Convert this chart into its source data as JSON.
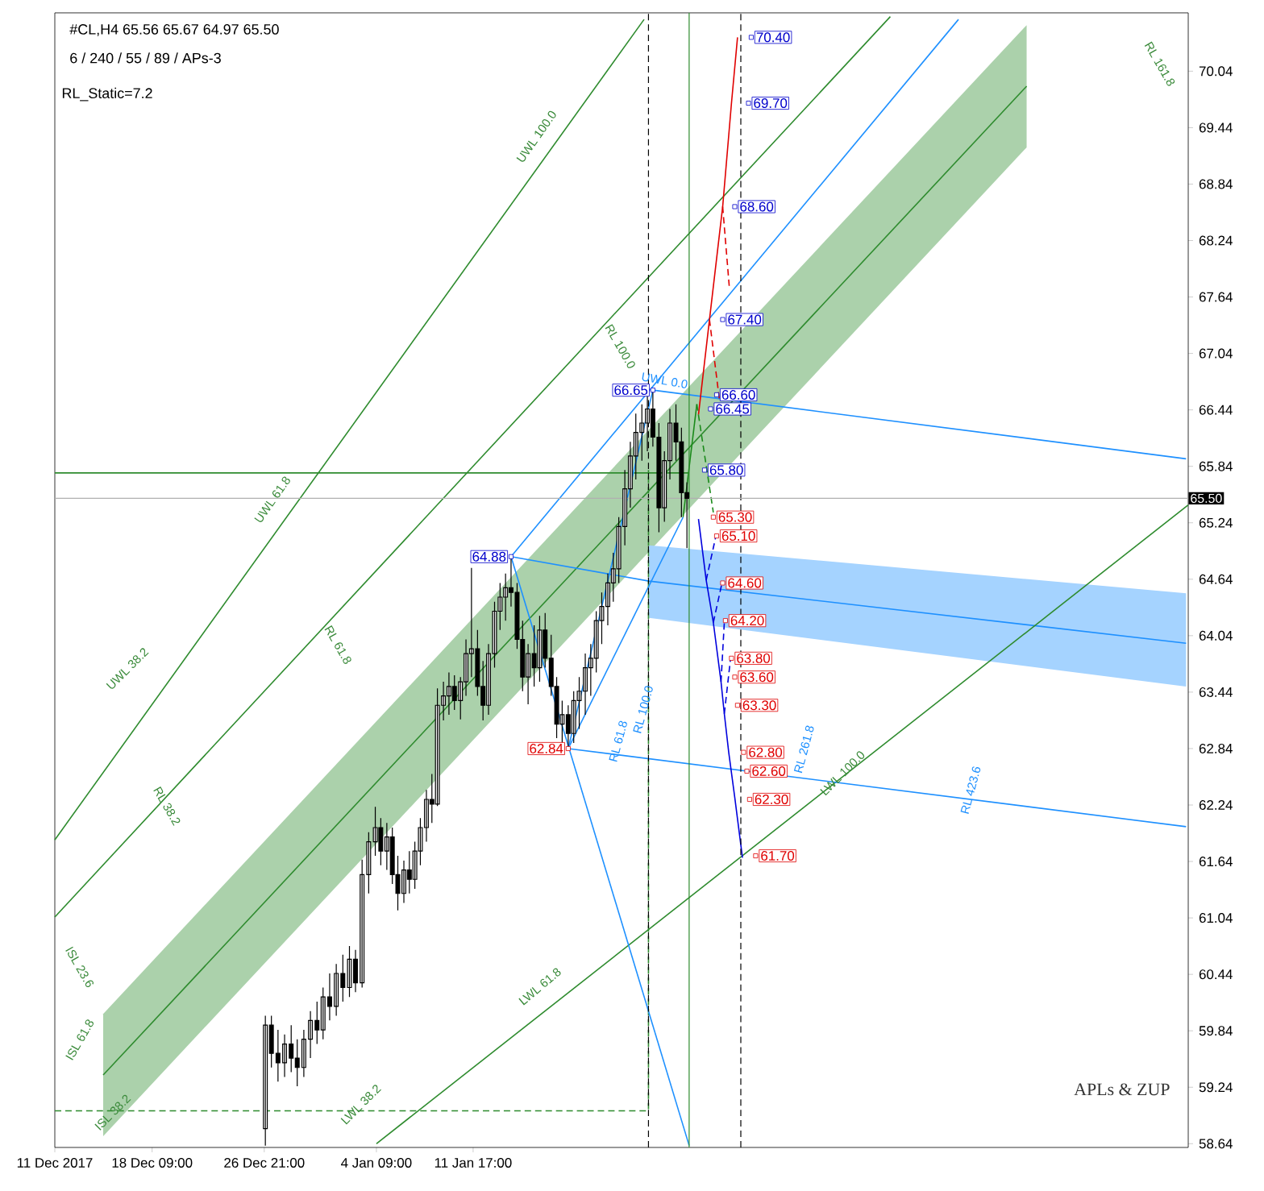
{
  "chart_data": {
    "type": "candlestick",
    "title": "#CL,H4 65.56 65.67 64.97 65.50",
    "subtitle": "6 / 240 / 55 / 89 / APs-3",
    "color": "#000000",
    "x": [
      "2017-12-26T23:00",
      "2017-12-27T10:00",
      "2017-12-27T22:00",
      "2017-12-28T10:00",
      "2017-12-28T22:00",
      "2017-12-29T09:00",
      "2017-12-29T21:00",
      "2017-12-30T09:00",
      "2017-12-30T21:00",
      "2017-12-31T08:00",
      "2017-12-31T20:00",
      "2018-01-01T08:00",
      "2018-01-01T20:00",
      "2018-01-02T08:00",
      "2018-01-02T19:00",
      "2018-01-03T07:00",
      "2018-01-03T19:00",
      "2018-01-04T07:00",
      "2018-01-04T17:00",
      "2018-01-05T04:00",
      "2018-01-05T14:00",
      "2018-01-06T00:00",
      "2018-01-06T11:00",
      "2018-01-06T21:00",
      "2018-01-07T07:00",
      "2018-01-07T17:00",
      "2018-01-08T04:00",
      "2018-01-08T14:00",
      "2018-01-09T00:00",
      "2018-01-09T11:00",
      "2018-01-09T21:00",
      "2018-01-10T07:00",
      "2018-01-10T18:00",
      "2018-01-11T04:00",
      "2018-01-11T14:00",
      "2018-01-12T01:00",
      "2018-01-12T11:00",
      "2018-01-12T21:00",
      "2018-01-13T08:00",
      "2018-01-13T18:00",
      "2018-01-14T04:00",
      "2018-01-14T14:00",
      "2018-01-15T01:00",
      "2018-01-15T11:00",
      "2018-01-15T21:00",
      "2018-01-16T08:00",
      "2018-01-16T18:00",
      "2018-01-17T04:00",
      "2018-01-17T15:00",
      "2018-01-18T01:00",
      "2018-01-18T11:00",
      "2018-01-18T22:00",
      "2018-01-19T08:00",
      "2018-01-19T18:00",
      "2018-01-20T05:00",
      "2018-01-20T15:00",
      "2018-01-21T01:00",
      "2018-01-21T11:00",
      "2018-01-21T22:00",
      "2018-01-22T08:00",
      "2018-01-22T18:00",
      "2018-01-23T05:00",
      "2018-01-23T15:00",
      "2018-01-24T01:00",
      "2018-01-24T12:00",
      "2018-01-24T22:00",
      "2018-01-25T08:00",
      "2018-01-25T19:00",
      "2018-01-26T05:00",
      "2018-01-26T15:00",
      "2018-01-27T02:00",
      "2018-01-27T12:00",
      "2018-01-27T22:00"
    ],
    "ohlc": [
      [
        58.8,
        60.0,
        58.62,
        59.9
      ],
      [
        59.9,
        60.0,
        59.45,
        59.6
      ],
      [
        59.6,
        59.85,
        59.3,
        59.5
      ],
      [
        59.5,
        59.8,
        59.35,
        59.7
      ],
      [
        59.7,
        59.9,
        59.4,
        59.55
      ],
      [
        59.55,
        59.75,
        59.25,
        59.45
      ],
      [
        59.45,
        59.85,
        59.35,
        59.75
      ],
      [
        59.75,
        60.05,
        59.55,
        59.95
      ],
      [
        59.95,
        60.15,
        59.7,
        59.85
      ],
      [
        59.85,
        60.3,
        59.75,
        60.2
      ],
      [
        60.2,
        60.45,
        59.95,
        60.1
      ],
      [
        60.1,
        60.55,
        60.0,
        60.45
      ],
      [
        60.45,
        60.65,
        60.15,
        60.3
      ],
      [
        60.3,
        60.74,
        60.2,
        60.6
      ],
      [
        60.6,
        60.7,
        60.25,
        60.35
      ],
      [
        60.35,
        61.66,
        60.3,
        61.5
      ],
      [
        61.5,
        61.95,
        61.3,
        61.85
      ],
      [
        61.85,
        62.22,
        61.7,
        62.0
      ],
      [
        62.0,
        62.1,
        61.6,
        61.75
      ],
      [
        61.75,
        62.05,
        61.55,
        61.9
      ],
      [
        61.9,
        62.0,
        61.4,
        61.5
      ],
      [
        61.5,
        61.7,
        61.12,
        61.3
      ],
      [
        61.3,
        61.65,
        61.2,
        61.55
      ],
      [
        61.55,
        61.75,
        61.3,
        61.45
      ],
      [
        61.45,
        61.85,
        61.35,
        61.75
      ],
      [
        61.75,
        62.1,
        61.6,
        62.0
      ],
      [
        62.0,
        62.4,
        61.85,
        62.3
      ],
      [
        62.3,
        62.57,
        62.05,
        62.25
      ],
      [
        62.25,
        63.48,
        62.23,
        63.3
      ],
      [
        63.3,
        63.55,
        63.14,
        63.4
      ],
      [
        63.4,
        63.65,
        63.2,
        63.5
      ],
      [
        63.5,
        63.62,
        63.25,
        63.35
      ],
      [
        63.35,
        63.6,
        63.15,
        63.55
      ],
      [
        63.55,
        64.0,
        63.4,
        63.85
      ],
      [
        63.85,
        64.76,
        63.6,
        63.9
      ],
      [
        63.9,
        64.1,
        63.4,
        63.5
      ],
      [
        63.5,
        63.77,
        63.14,
        63.3
      ],
      [
        63.3,
        63.95,
        63.2,
        63.85
      ],
      [
        63.85,
        64.4,
        63.7,
        64.3
      ],
      [
        64.3,
        64.6,
        64.1,
        64.45
      ],
      [
        64.45,
        64.7,
        64.2,
        64.55
      ],
      [
        64.55,
        64.88,
        64.35,
        64.5
      ],
      [
        64.5,
        64.6,
        63.9,
        64.0
      ],
      [
        64.0,
        64.2,
        63.45,
        63.6
      ],
      [
        63.6,
        63.95,
        63.31,
        63.85
      ],
      [
        63.85,
        64.15,
        63.5,
        63.7
      ],
      [
        63.7,
        64.25,
        63.55,
        64.1
      ],
      [
        64.1,
        64.28,
        63.7,
        63.8
      ],
      [
        63.8,
        64.05,
        63.4,
        63.5
      ],
      [
        63.5,
        63.6,
        62.95,
        63.1
      ],
      [
        63.1,
        63.35,
        62.9,
        63.2
      ],
      [
        63.2,
        63.3,
        62.84,
        63.0
      ],
      [
        63.0,
        63.45,
        62.9,
        63.35
      ],
      [
        63.35,
        63.6,
        63.05,
        63.45
      ],
      [
        63.45,
        63.85,
        63.2,
        63.7
      ],
      [
        63.7,
        63.95,
        63.4,
        63.8
      ],
      [
        63.8,
        64.3,
        63.65,
        64.2
      ],
      [
        64.2,
        64.5,
        63.95,
        64.35
      ],
      [
        64.35,
        64.7,
        64.15,
        64.6
      ],
      [
        64.6,
        64.92,
        64.4,
        64.75
      ],
      [
        64.75,
        65.3,
        64.6,
        65.2
      ],
      [
        65.2,
        65.8,
        65.0,
        65.6
      ],
      [
        65.6,
        66.1,
        65.4,
        65.95
      ],
      [
        65.95,
        66.4,
        65.7,
        66.2
      ],
      [
        66.2,
        66.5,
        65.9,
        66.3
      ],
      [
        66.3,
        66.6,
        66.0,
        66.45
      ],
      [
        66.45,
        66.65,
        66.05,
        66.15
      ],
      [
        66.15,
        66.3,
        65.14,
        65.4
      ],
      [
        65.4,
        66.0,
        65.25,
        65.9
      ],
      [
        65.9,
        66.45,
        65.7,
        66.3
      ],
      [
        66.3,
        66.5,
        65.9,
        66.1
      ],
      [
        66.1,
        66.25,
        65.3,
        65.56
      ],
      [
        65.56,
        65.67,
        64.97,
        65.5
      ]
    ],
    "series": [
      {
        "type": "line",
        "color": "#2e8b2e",
        "x": [
          "2017-12-14T16:00",
          "2018-02-22T16:00"
        ],
        "values": [
          59.37,
          69.88
        ],
        "lower": [
          58.72,
          69.23
        ],
        "upper": [
          60.02,
          70.53
        ]
      },
      {
        "type": "line",
        "color": "#1e90ff",
        "x": [
          "2018-01-14T14:00",
          "2018-01-25T01:00",
          "2018-03-06T18:00"
        ],
        "values": [
          64.88,
          64.62,
          63.96
        ],
        "lower": [
          null,
          64.23,
          63.5
        ],
        "upper": [
          null,
          65.0,
          64.49
        ]
      },
      {
        "type": "line",
        "color": "#2e8b2e",
        "x": [
          "2017-12-11T00:00",
          "2018-01-24T16:00"
        ],
        "values": [
          61.87,
          70.59
        ]
      },
      {
        "type": "line",
        "color": "#2e8b2e",
        "x": [
          "2017-12-11T00:00",
          "2018-02-12T08:00"
        ],
        "values": [
          61.05,
          70.62
        ]
      },
      {
        "type": "line",
        "color": "#2e8b2e",
        "x": [
          "2018-01-04T09:00",
          "2018-03-06T22:00"
        ],
        "values": [
          58.64,
          65.43
        ]
      },
      {
        "type": "line",
        "color": "#2e8b2e",
        "x": [
          "2017-12-11T00:00",
          "2018-01-28T02:00"
        ],
        "values": [
          65.77,
          65.77
        ]
      },
      {
        "type": "line",
        "color": "#2e8b2e",
        "line_style": "dashed",
        "x": [
          "2017-12-11T00:00",
          "2018-01-25T00:00",
          "2018-01-25T00:00"
        ],
        "values": [
          58.99,
          58.99,
          65.8
        ]
      },
      {
        "type": "line",
        "color": "#1e90ff",
        "x": [
          "2018-01-25T08:00",
          "2018-03-06T18:00"
        ],
        "values": [
          66.65,
          65.92
        ]
      },
      {
        "type": "line",
        "color": "#1e90ff",
        "x": [
          "2018-01-18T22:00",
          "2018-03-06T18:00"
        ],
        "values": [
          62.84,
          62.01
        ]
      },
      {
        "type": "line",
        "color": "#1e90ff",
        "x": [
          "2018-01-14T14:00",
          "2018-01-28T02:00"
        ],
        "values": [
          64.88,
          58.62
        ]
      },
      {
        "type": "line",
        "color": "#1e90ff",
        "x": [
          "2018-01-14T14:00",
          "2018-02-17T12:00"
        ],
        "values": [
          64.88,
          70.59
        ]
      },
      {
        "type": "line",
        "color": "#1e90ff",
        "x": [
          "2018-01-18T22:00",
          "2018-01-25T08:00"
        ],
        "values": [
          62.84,
          66.65
        ]
      },
      {
        "type": "line",
        "color": "#1e90ff",
        "x": [
          "2018-01-18T22:00",
          "2018-01-27T15:00"
        ],
        "values": [
          62.84,
          65.3
        ]
      },
      {
        "type": "line",
        "color": "#e00000",
        "x": [
          "2018-01-28T19:00",
          "2018-01-29T15:00",
          "2018-01-30T15:00",
          "2018-01-31T07:00",
          "2018-01-31T18:00"
        ],
        "values": [
          66.39,
          67.4,
          68.6,
          69.7,
          70.4
        ]
      },
      {
        "type": "line",
        "color": "#e00000",
        "line_style": "dashed",
        "x": [
          "2018-01-29T15:00",
          "2018-01-30T09:00"
        ],
        "values": [
          67.4,
          66.55
        ]
      },
      {
        "type": "line",
        "color": "#e00000",
        "line_style": "dashed",
        "x": [
          "2018-01-30T15:00",
          "2018-01-31T03:00"
        ],
        "values": [
          68.6,
          67.75
        ]
      },
      {
        "type": "line",
        "color": "#1a8a1a",
        "x": [
          "2018-01-27T15:00",
          "2018-01-28T16:00"
        ],
        "values": [
          65.3,
          66.5
        ]
      },
      {
        "type": "line",
        "color": "#1a8a1a",
        "line_style": "dashed",
        "x": [
          "2018-01-28T16:00",
          "2018-01-29T22:00"
        ],
        "values": [
          66.5,
          65.35
        ]
      },
      {
        "type": "line",
        "color": "#0000dd",
        "x": [
          "2018-01-28T19:00",
          "2018-01-29T09:00",
          "2018-01-29T22:00",
          "2018-01-30T12:00",
          "2018-01-30T18:00",
          "2018-01-31T02:00",
          "2018-01-31T13:00",
          "2018-02-01T03:00"
        ],
        "values": [
          65.28,
          64.63,
          64.18,
          63.55,
          63.21,
          62.8,
          62.32,
          61.68
        ]
      },
      {
        "type": "line",
        "color": "#0000dd",
        "line_style": "dashed",
        "x": [
          "2018-01-29T09:00",
          "2018-01-30T02:00"
        ],
        "values": [
          64.63,
          65.08
        ]
      },
      {
        "type": "line",
        "color": "#0000dd",
        "line_style": "dashed",
        "x": [
          "2018-01-29T22:00",
          "2018-01-30T13:00"
        ],
        "values": [
          64.18,
          64.58
        ]
      },
      {
        "type": "line",
        "color": "#0000dd",
        "line_style": "dashed",
        "x": [
          "2018-01-30T12:00",
          "2018-01-30T18:00"
        ],
        "values": [
          63.55,
          64.18
        ]
      },
      {
        "type": "line",
        "color": "#0000dd",
        "line_style": "dashed",
        "x": [
          "2018-01-30T18:00",
          "2018-01-31T05:00"
        ],
        "values": [
          63.21,
          63.78
        ]
      },
      {
        "type": "scatter",
        "color": "#0000cc",
        "marker": "square",
        "x": [
          "2018-02-01T19:00",
          "2018-02-01T14:00",
          "2018-01-31T13:00",
          "2018-01-30T15:00",
          "2018-01-30T04:00",
          "2018-01-29T17:00",
          "2018-01-29T06:00"
        ],
        "values": [
          70.4,
          69.7,
          68.6,
          67.4,
          66.6,
          66.45,
          65.8
        ],
        "value_labels": [
          "70.40",
          "69.70",
          "68.60",
          "67.40",
          "66.60",
          "66.45",
          "65.80"
        ]
      },
      {
        "type": "scatter",
        "color": "#e00000",
        "marker": "square",
        "x": [
          "2018-01-29T22:00",
          "2018-01-30T04:00",
          "2018-01-30T15:00",
          "2018-01-30T20:00",
          "2018-01-31T07:00",
          "2018-01-31T13:00",
          "2018-01-31T18:00",
          "2018-02-01T05:00",
          "2018-02-01T11:00",
          "2018-02-01T16:00",
          "2018-02-02T03:00"
        ],
        "values": [
          65.3,
          65.1,
          64.6,
          64.2,
          63.8,
          63.6,
          63.3,
          62.8,
          62.6,
          62.3,
          61.7
        ],
        "value_labels": [
          "65.30",
          "65.10",
          "64.60",
          "64.20",
          "63.80",
          "63.60",
          "63.30",
          "62.80",
          "62.60",
          "62.30",
          "61.70"
        ]
      },
      {
        "type": "scatter",
        "colors": [
          "#0000cc",
          "#0000cc",
          "#e00000"
        ],
        "marker": "square",
        "x": [
          "2018-01-25T08:00",
          "2018-01-14T14:00",
          "2018-01-18T22:00"
        ],
        "values": [
          66.65,
          64.88,
          62.84
        ],
        "value_labels": [
          "66.65",
          "64.88",
          "62.84"
        ]
      }
    ],
    "ref_lines": [
      {
        "axis": "x",
        "value": "2018-01-25T00:00",
        "color": "#000000",
        "line_style": "dashed"
      },
      {
        "axis": "x",
        "value": "2018-02-01T00:00",
        "color": "#000000",
        "line_style": "dashed"
      },
      {
        "axis": "x",
        "value": "2018-01-28T02:00",
        "color": "#2e8b2e",
        "line_style": "solid"
      },
      {
        "axis": "y",
        "value": 65.5,
        "color": "#b0b0b0",
        "line_style": "solid",
        "label": "65.50"
      }
    ],
    "annotations": [
      "RL_Static=7.2",
      "APLs & ZUP",
      "UWL 100.0",
      "UWL 61.8",
      "UWL 38.2",
      "RL 100.0",
      "UWL 0.0",
      "RL 61.8",
      "RL 38.2",
      "ISL 23.6",
      "ISL 61.8",
      "ISL 38.2",
      "LWL 38.2",
      "LWL 61.8",
      "LWL 100.0",
      "RL 261.8",
      "RL 423.6",
      "RL 161.8",
      "RL 61.8",
      "RL 100.0"
    ],
    "xlim": [
      "2017-12-11T00:00",
      "2018-03-06T22:00"
    ],
    "xticks": [
      {
        "value": "2017-12-11T00:00",
        "label": "11 Dec 2017"
      },
      {
        "value": "2017-12-18T09:00",
        "label": "18 Dec 09:00"
      },
      {
        "value": "2017-12-26T21:00",
        "label": "26 Dec 21:00"
      },
      {
        "value": "2018-01-04T09:00",
        "label": "4 Jan 09:00"
      },
      {
        "value": "2018-01-11T17:00",
        "label": "11 Jan 17:00"
      }
    ],
    "ylim": [
      58.6,
      70.66
    ],
    "yticks": [
      58.64,
      59.24,
      59.84,
      60.44,
      61.04,
      61.64,
      62.24,
      62.84,
      63.44,
      64.04,
      64.64,
      65.24,
      65.84,
      66.44,
      67.04,
      67.64,
      68.24,
      68.84,
      69.44,
      70.04
    ]
  }
}
